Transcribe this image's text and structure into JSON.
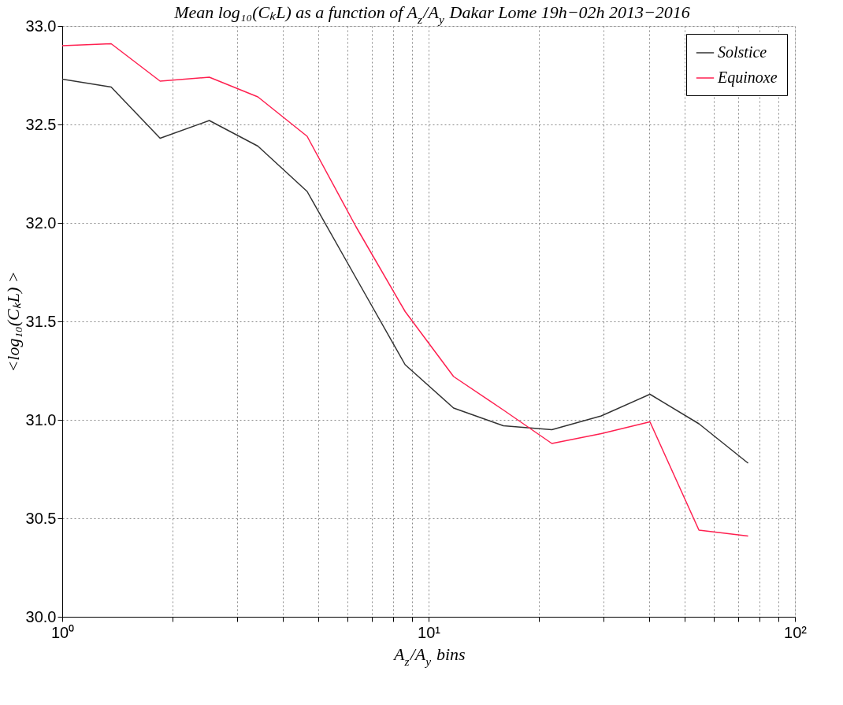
{
  "chart_data": {
    "type": "line",
    "title": "Mean log₁₀(CₖL) as a function of A$_{z}$/A$_{y}$ Dakar Lome 19h−02h 2013−2016",
    "xlabel": "A$_{z}$/A$_{y}$ bins",
    "ylabel": "<log₁₀(CₖL) >",
    "x": [
      1,
      1.36,
      1.85,
      2.52,
      3.42,
      4.66,
      6.34,
      8.63,
      11.7,
      16.0,
      21.7,
      29.6,
      40.2,
      54.7,
      74.5
    ],
    "series": [
      {
        "name": "Solstice",
        "color": "#333333",
        "values": [
          32.73,
          32.69,
          32.43,
          32.52,
          32.39,
          32.16,
          31.72,
          31.28,
          31.06,
          30.97,
          30.95,
          31.02,
          31.13,
          30.98,
          30.78
        ]
      },
      {
        "name": "Equinoxe",
        "color": "#ff2050",
        "values": [
          32.9,
          32.91,
          32.72,
          32.74,
          32.64,
          32.44,
          31.98,
          31.55,
          31.22,
          31.05,
          30.88,
          30.93,
          30.99,
          30.44,
          30.41
        ]
      }
    ],
    "log": "x",
    "xlim": [
      1,
      100
    ],
    "ylim": [
      30,
      33
    ],
    "xticks": [
      {
        "value": 1,
        "label": "10⁰"
      },
      {
        "value": 2,
        "label": null
      },
      {
        "value": 3,
        "label": null
      },
      {
        "value": 4,
        "label": null
      },
      {
        "value": 5,
        "label": null
      },
      {
        "value": 6,
        "label": null
      },
      {
        "value": 7,
        "label": null
      },
      {
        "value": 8,
        "label": null
      },
      {
        "value": 9,
        "label": null
      },
      {
        "value": 10,
        "label": "10¹"
      },
      {
        "value": 20,
        "label": null
      },
      {
        "value": 30,
        "label": null
      },
      {
        "value": 40,
        "label": null
      },
      {
        "value": 50,
        "label": null
      },
      {
        "value": 60,
        "label": null
      },
      {
        "value": 70,
        "label": null
      },
      {
        "value": 80,
        "label": null
      },
      {
        "value": 90,
        "label": null
      },
      {
        "value": 100,
        "label": "10²"
      }
    ],
    "yticks": [
      {
        "value": 30,
        "label": "30.0"
      },
      30.5,
      {
        "value": 31,
        "label": "31.0"
      },
      31.5,
      {
        "value": 32,
        "label": "32.0"
      },
      32.5,
      {
        "value": 33,
        "label": "33.0"
      }
    ],
    "grid": true,
    "legend": "top right",
    "line_style": "solid",
    "marker": "none"
  }
}
